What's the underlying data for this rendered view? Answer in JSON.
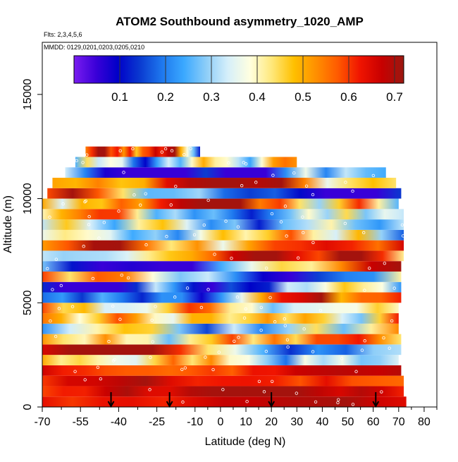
{
  "chart_data": {
    "type": "heatmap",
    "title": "ATOM2 Southbound asymmetry_1020_AMP",
    "subtitle_flights": "Flts: 2,3,4,5,6",
    "subtitle_dates": "MMDD: 0129,0201,0203,0205,0210",
    "xlabel": "Latitude (deg N)",
    "ylabel": "Altitude (m)",
    "xlim": [
      -70,
      85
    ],
    "ylim": [
      0,
      17500
    ],
    "x_ticks": [
      -70,
      -55,
      -40,
      -25,
      -10,
      0,
      10,
      20,
      30,
      40,
      50,
      60,
      70,
      80
    ],
    "x_tick_labels": [
      "-70",
      "-55",
      "-40",
      "-25",
      "-10",
      "0",
      "10",
      "20",
      "30",
      "40",
      "50",
      "60",
      "70",
      "80"
    ],
    "x_minor_ticks": [
      -62.5,
      -47.5,
      -32.5,
      -17.5,
      -5,
      5,
      15,
      25,
      35,
      45,
      55,
      65,
      75,
      85
    ],
    "y_ticks": [
      0,
      5000,
      10000,
      15000
    ],
    "y_tick_labels": [
      "0",
      "5000",
      "10000",
      "15000"
    ],
    "colorbar": {
      "range": [
        0.0,
        0.72
      ],
      "ticks": [
        0.1,
        0.2,
        0.3,
        0.4,
        0.5,
        0.6,
        0.7
      ],
      "tick_labels": [
        "0.1",
        "0.2",
        "0.3",
        "0.4",
        "0.5",
        "0.6",
        "0.7"
      ],
      "dividers": [
        0.2,
        0.3,
        0.4,
        0.5,
        0.6,
        0.7
      ],
      "colors": [
        "#7a1cf0",
        "#3a00d8",
        "#0000c8",
        "#0a3ad0",
        "#1e78ee",
        "#3aa8ff",
        "#8ccdf8",
        "#d6effa",
        "#ffffe0",
        "#ffe87a",
        "#ffc000",
        "#ff9000",
        "#ff5a00",
        "#f01400",
        "#c80000",
        "#9a1810"
      ]
    },
    "layer_tops_m": [
      500,
      1000,
      1500,
      2000,
      2500,
      3000,
      3500,
      4000,
      4500,
      5000,
      5500,
      6000,
      6500,
      7000,
      7500,
      8000,
      8500,
      9000,
      9500,
      10000,
      10500,
      11000,
      11500,
      12000,
      12500
    ],
    "layer_lat_extent": [
      [
        -70,
        73
      ],
      [
        -70,
        72
      ],
      [
        -70,
        72
      ],
      [
        -70,
        71
      ],
      [
        -70,
        70
      ],
      [
        -70,
        71
      ],
      [
        -70,
        71
      ],
      [
        -70,
        70
      ],
      [
        -70,
        70
      ],
      [
        -70,
        70
      ],
      [
        -70,
        71
      ],
      [
        -70,
        71
      ],
      [
        -70,
        71
      ],
      [
        -70,
        71
      ],
      [
        -70,
        72
      ],
      [
        -70,
        72
      ],
      [
        -70,
        72
      ],
      [
        -70,
        72
      ],
      [
        -70,
        72
      ],
      [
        -70,
        70
      ],
      [
        -68,
        71
      ],
      [
        -66,
        69
      ],
      [
        -61,
        65
      ],
      [
        -57,
        30
      ],
      [
        -53,
        -8
      ]
    ],
    "arrow_latitudes": [
      -43,
      -20,
      20,
      61
    ],
    "sample_points_note": "white circles mark aircraft sample locations along each altitude band"
  }
}
